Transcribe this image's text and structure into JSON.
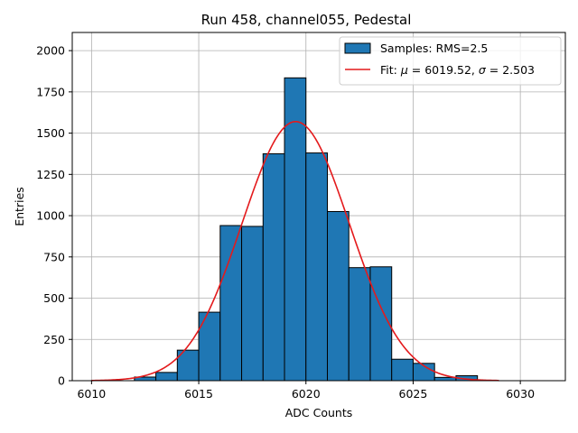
{
  "chart_data": {
    "type": "bar",
    "title": "Run 458, channel055, Pedestal",
    "xlabel": "ADC Counts",
    "ylabel": "Entries",
    "xlim": [
      6009.1,
      6032.1
    ],
    "ylim": [
      0,
      2110
    ],
    "xticks": [
      6010,
      6015,
      6020,
      6025,
      6030
    ],
    "yticks": [
      0,
      250,
      500,
      750,
      1000,
      1250,
      1500,
      1750,
      2000
    ],
    "grid": true,
    "legend_position": "top-right",
    "histogram": {
      "name": "Samples: RMS=2.5",
      "bin_width": 1,
      "bin_starts": [
        6010,
        6011,
        6012,
        6013,
        6014,
        6015,
        6016,
        6017,
        6018,
        6019,
        6020,
        6021,
        6022,
        6023,
        6024,
        6025,
        6026,
        6027,
        6028,
        6029,
        6030
      ],
      "counts": [
        1,
        0,
        22,
        50,
        185,
        415,
        940,
        935,
        1375,
        1835,
        1380,
        1025,
        685,
        690,
        130,
        105,
        20,
        30,
        0,
        0,
        0
      ],
      "color": "#1f77b4"
    },
    "fit": {
      "name": "Fit: μ = 6019.52, σ = 2.503",
      "label_parts": [
        "Fit: ",
        "μ",
        " = 6019.52, ",
        "σ",
        " = 2.503"
      ],
      "function": "gaussian",
      "mu": 6019.52,
      "sigma": 2.503,
      "peak": 1570,
      "x_range": [
        6010,
        6029
      ],
      "color": "#e41a1c"
    }
  }
}
